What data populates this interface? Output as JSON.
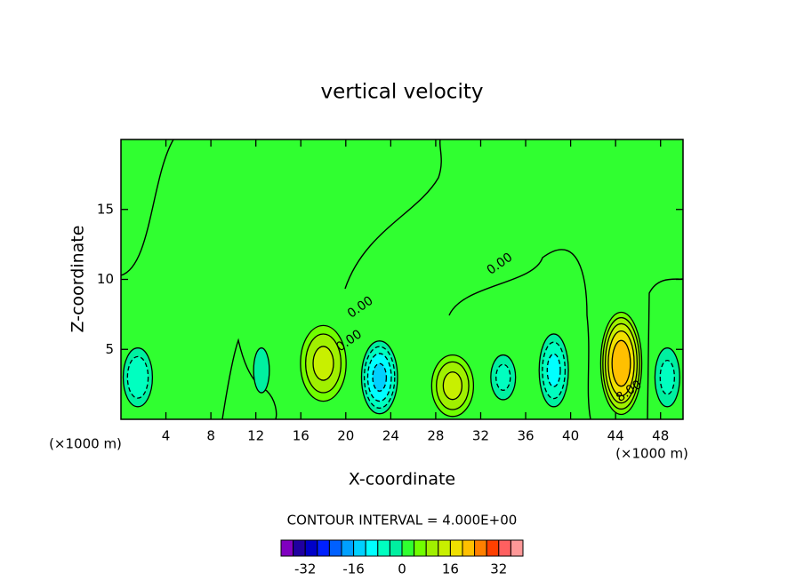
{
  "chart_data": {
    "type": "contour",
    "title": "vertical velocity",
    "xlabel": "X-coordinate",
    "ylabel": "Z-coordinate",
    "x_unit": "(×1000 m)",
    "y_unit": "(×1000 m)",
    "xlim": [
      0,
      50
    ],
    "ylim": [
      0,
      20
    ],
    "xticks": [
      4,
      8,
      12,
      16,
      20,
      24,
      28,
      32,
      36,
      40,
      44,
      48
    ],
    "yticks": [
      5,
      10,
      15
    ],
    "contour_interval": {
      "value": 4,
      "label": "CONTOUR INTERVAL = 4.000E+00"
    },
    "cells": [
      {
        "x": 18,
        "z": 4,
        "rx": 2.4,
        "rz": 3.2,
        "peak": 14
      },
      {
        "x": 23,
        "z": 3,
        "rx": 1.6,
        "rz": 2.6,
        "peak": -14
      },
      {
        "x": 29.5,
        "z": 2.4,
        "rx": 2.2,
        "rz": 2.6,
        "peak": 14
      },
      {
        "x": 44.5,
        "z": 4,
        "rx": 2.0,
        "rz": 4.0,
        "peak": 24
      },
      {
        "x": 38.5,
        "z": 3.5,
        "rx": 1.3,
        "rz": 2.6,
        "peak": -10
      },
      {
        "x": 34,
        "z": 3,
        "rx": 1.1,
        "rz": 1.6,
        "peak": -6
      },
      {
        "x": 1.5,
        "z": 3,
        "rx": 1.3,
        "rz": 2.1,
        "peak": -8
      },
      {
        "x": 48.6,
        "z": 3,
        "rx": 1.1,
        "rz": 2.1,
        "peak": -6
      },
      {
        "x": 12.5,
        "z": 3.5,
        "rx": 0.7,
        "rz": 1.6,
        "peak": -4
      }
    ],
    "contour_labels": [
      {
        "value": 0,
        "label": "0.00",
        "x": 21.3,
        "z": 8
      },
      {
        "value": 0,
        "label": "0.00",
        "x": 33.7,
        "z": 11.1
      },
      {
        "value": 0,
        "label": "0.00",
        "x": 20.3,
        "z": 5.6
      },
      {
        "value": 8,
        "label": "8.00",
        "x": 45.2,
        "z": 2
      }
    ],
    "colorbar": {
      "levels": [
        -40,
        -36,
        -32,
        -28,
        -24,
        -20,
        -16,
        -12,
        -8,
        -4,
        0,
        4,
        8,
        12,
        16,
        20,
        24,
        28,
        32,
        36,
        40
      ],
      "colors": [
        "#8000c0",
        "#2000a0",
        "#0000c8",
        "#0020ff",
        "#0060ff",
        "#00a0ff",
        "#00d0ff",
        "#00ffff",
        "#00ffc0",
        "#00f0a0",
        "#30ff30",
        "#70ff00",
        "#a0f000",
        "#c8f000",
        "#f0e000",
        "#ffc000",
        "#ff8000",
        "#ff4000",
        "#ff6060",
        "#ff9898"
      ],
      "ticks": [
        -32,
        -16,
        0,
        16,
        32
      ]
    }
  }
}
